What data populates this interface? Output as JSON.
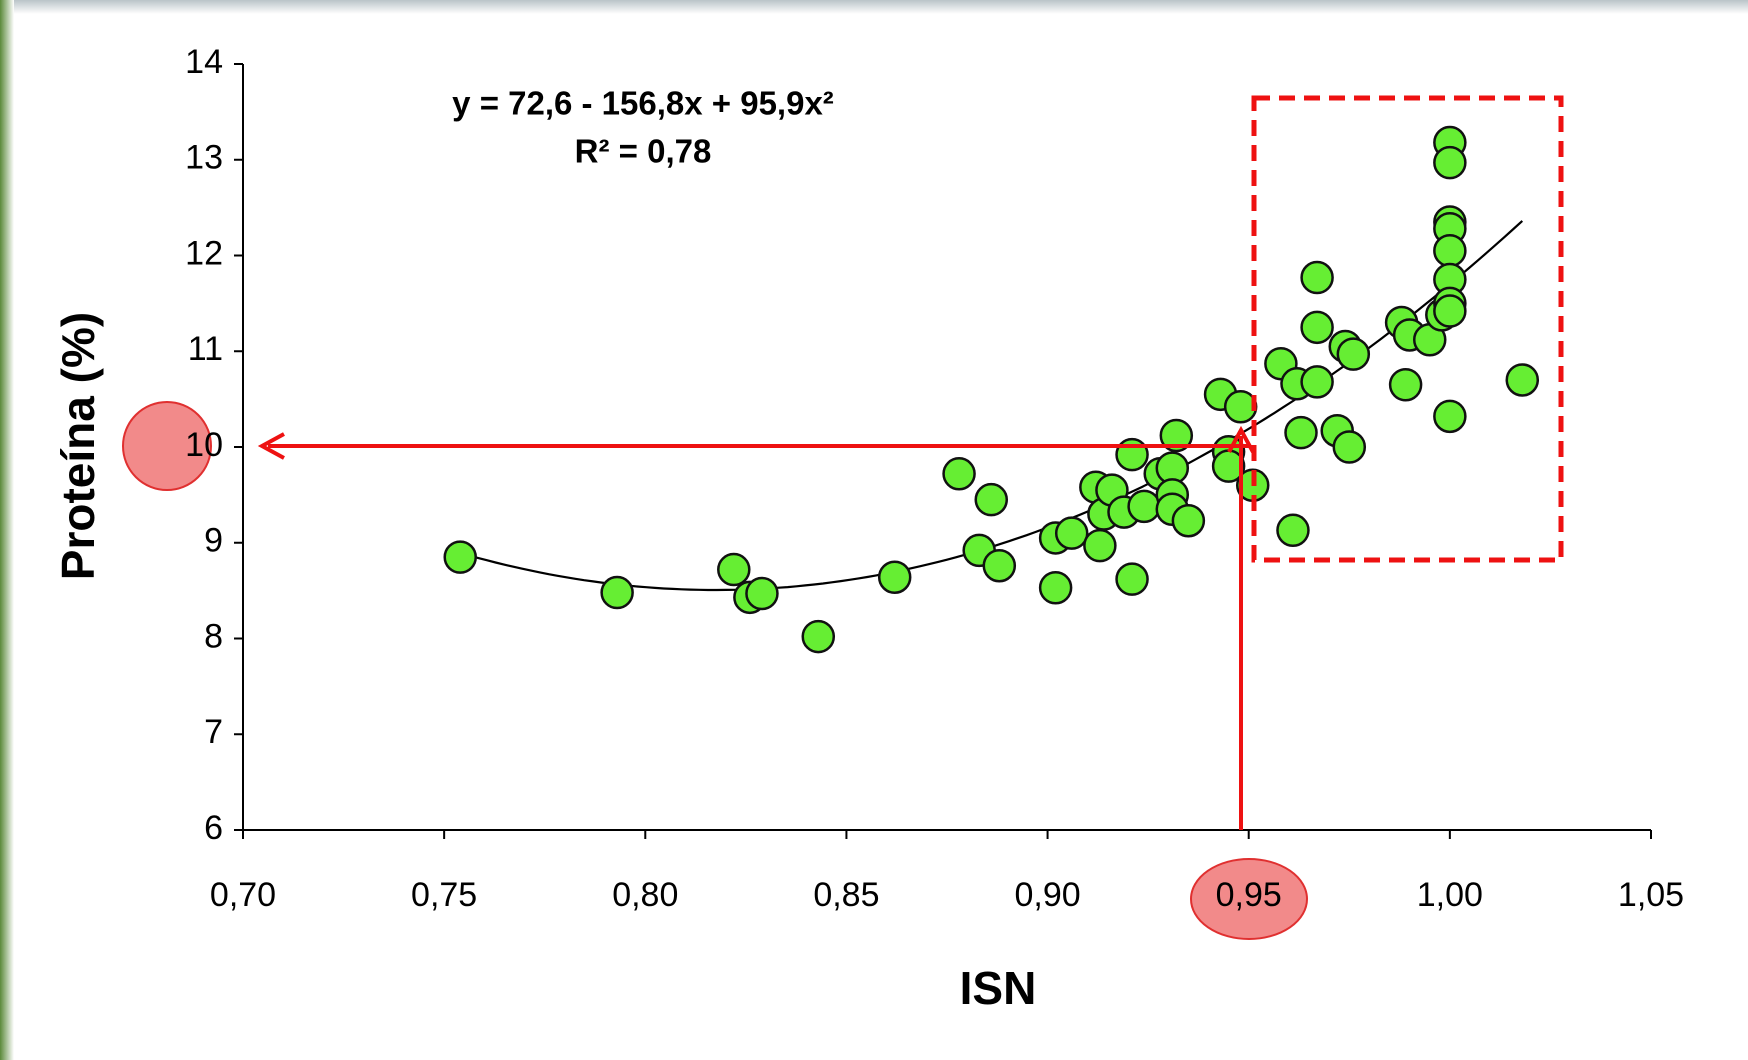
{
  "chart_data": {
    "type": "scatter",
    "equation": "y = 72,6 - 156,8x  + 95,9x²",
    "r_squared": "R² = 0,78",
    "x_label": "ISN",
    "y_label": "Proteína (%)",
    "color": "#66ee33",
    "trendline": {
      "coefficients": [
        72.6,
        -156.8,
        95.9
      ],
      "color": "#000000"
    },
    "xlim": [
      0.7,
      1.05
    ],
    "ylim": [
      6,
      14
    ],
    "xticks": [
      {
        "value": 0.7,
        "label": "0,70"
      },
      {
        "value": 0.75,
        "label": "0,75"
      },
      {
        "value": 0.8,
        "label": "0,80"
      },
      {
        "value": 0.85,
        "label": "0,85"
      },
      {
        "value": 0.9,
        "label": "0,90"
      },
      {
        "value": 0.95,
        "label": "0,95"
      },
      {
        "value": 1.0,
        "label": "1,00"
      },
      {
        "value": 1.05,
        "label": "1,05"
      }
    ],
    "yticks": [
      6,
      7,
      8,
      9,
      10,
      11,
      12,
      13,
      14
    ],
    "x": [
      0.754,
      0.793,
      0.822,
      0.826,
      0.829,
      0.843,
      0.862,
      0.878,
      0.883,
      0.886,
      0.888,
      0.902,
      0.902,
      0.906,
      0.912,
      0.913,
      0.914,
      0.916,
      0.919,
      0.921,
      0.921,
      0.924,
      0.928,
      0.931,
      0.932,
      0.931,
      0.931,
      0.935,
      0.943,
      0.945,
      0.945,
      0.948,
      0.951,
      0.958,
      0.961,
      0.962,
      0.963,
      0.967,
      0.967,
      0.967,
      0.972,
      0.974,
      0.975,
      0.976,
      0.988,
      0.989,
      0.99,
      0.995,
      0.998,
      1.0,
      1.0,
      1.0,
      1.0,
      1.0,
      1.0,
      1.0,
      1.0,
      1.0,
      1.018
    ],
    "values": [
      8.85,
      8.48,
      8.72,
      8.43,
      8.47,
      8.02,
      8.64,
      9.72,
      8.92,
      9.45,
      8.76,
      9.05,
      8.53,
      9.1,
      9.58,
      8.97,
      9.3,
      9.55,
      9.32,
      9.92,
      8.62,
      9.38,
      9.72,
      9.78,
      10.12,
      9.5,
      9.35,
      9.23,
      10.55,
      9.95,
      9.8,
      10.42,
      9.6,
      10.87,
      9.13,
      10.66,
      10.15,
      11.77,
      11.25,
      10.68,
      10.17,
      11.05,
      10.0,
      10.97,
      11.3,
      10.65,
      11.17,
      11.12,
      11.38,
      13.18,
      12.97,
      12.35,
      12.28,
      12.05,
      11.75,
      11.5,
      11.42,
      10.32,
      10.7
    ]
  }
}
